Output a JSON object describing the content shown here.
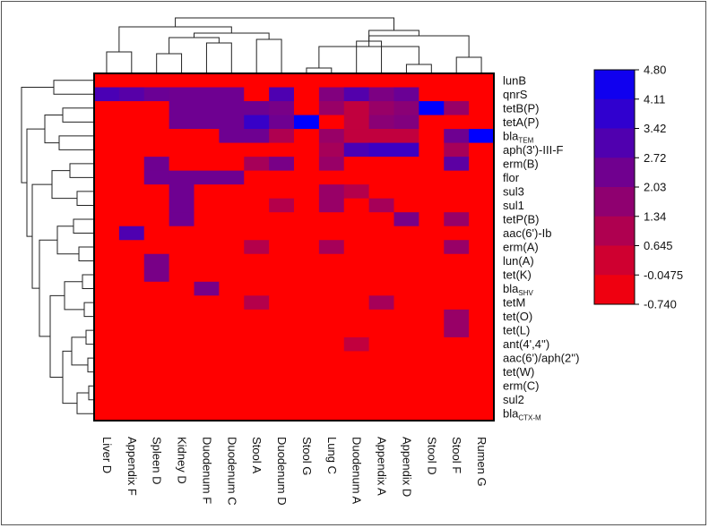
{
  "chart_data": {
    "type": "heatmap",
    "rows": [
      "lunB",
      "qnrS",
      "tetB(P)",
      "tetA(P)",
      "bla_TEM",
      "aph(3')-III-F",
      "erm(B)",
      "flor",
      "sul3",
      "sul1",
      "tetP(B)",
      "aac(6')-Ib",
      "erm(A)",
      "lun(A)",
      "tet(K)",
      "bla_SHV",
      "tetM",
      "tet(O)",
      "tet(L)",
      "ant(4',4'')",
      "aac(6')/aph(2'')",
      "tet(W)",
      "erm(C)",
      "sul2",
      "bla_CTX-M"
    ],
    "row_labels": [
      {
        "main": "lunB",
        "sub": ""
      },
      {
        "main": "qnrS",
        "sub": ""
      },
      {
        "main": "tetB(P)",
        "sub": ""
      },
      {
        "main": "tetA(P)",
        "sub": ""
      },
      {
        "main": "bla",
        "sub": "TEM"
      },
      {
        "main": "aph(3')-III-F",
        "sub": ""
      },
      {
        "main": "erm(B)",
        "sub": ""
      },
      {
        "main": "flor",
        "sub": ""
      },
      {
        "main": "sul3",
        "sub": ""
      },
      {
        "main": "sul1",
        "sub": ""
      },
      {
        "main": "tetP(B)",
        "sub": ""
      },
      {
        "main": "aac(6')-Ib",
        "sub": ""
      },
      {
        "main": "erm(A)",
        "sub": ""
      },
      {
        "main": "lun(A)",
        "sub": ""
      },
      {
        "main": "tet(K)",
        "sub": ""
      },
      {
        "main": "bla",
        "sub": "SHV"
      },
      {
        "main": "tetM",
        "sub": ""
      },
      {
        "main": "tet(O)",
        "sub": ""
      },
      {
        "main": "tet(L)",
        "sub": ""
      },
      {
        "main": "ant(4',4'')",
        "sub": ""
      },
      {
        "main": "aac(6')/aph(2'')",
        "sub": ""
      },
      {
        "main": "tet(W)",
        "sub": ""
      },
      {
        "main": "erm(C)",
        "sub": ""
      },
      {
        "main": "sul2",
        "sub": ""
      },
      {
        "main": "bla",
        "sub": "CTX-M"
      }
    ],
    "columns": [
      "Liver D",
      "Appendix F",
      "Spleen D",
      "Kidney D",
      "Duodenum F",
      "Duodenum C",
      "Stool A",
      "Duodenum D",
      "Stool G",
      "Lung C",
      "Duodenum A",
      "Appendix A",
      "Appendix D",
      "Stool D",
      "Stool F",
      "Rumen G"
    ],
    "values": [
      [
        -0.74,
        -0.74,
        -0.74,
        -0.74,
        -0.74,
        -0.74,
        -0.74,
        -0.74,
        -0.74,
        -0.74,
        -0.74,
        -0.74,
        -0.74,
        -0.74,
        -0.74,
        -0.74
      ],
      [
        3.2,
        2.9,
        2.5,
        2.4,
        2.4,
        2.4,
        -0.74,
        3.1,
        -0.74,
        2.0,
        3.0,
        2.1,
        2.5,
        -0.74,
        -0.74,
        -0.74
      ],
      [
        -0.74,
        -0.74,
        -0.74,
        2.4,
        2.4,
        2.4,
        2.4,
        2.2,
        -0.74,
        1.5,
        0.6,
        1.5,
        1.8,
        4.8,
        1.5,
        -0.74
      ],
      [
        -0.74,
        -0.74,
        -0.74,
        2.4,
        2.4,
        2.4,
        3.6,
        2.4,
        4.8,
        -0.74,
        0.6,
        1.8,
        2.0,
        -0.74,
        -0.74,
        -0.74
      ],
      [
        -0.74,
        -0.74,
        -0.74,
        -0.74,
        -0.74,
        2.4,
        2.4,
        1.0,
        -0.74,
        1.5,
        0.6,
        0.6,
        0.6,
        -0.74,
        2.4,
        4.8
      ],
      [
        -0.74,
        -0.74,
        -0.74,
        -0.74,
        -0.74,
        -0.74,
        -0.74,
        -0.74,
        -0.74,
        1.2,
        3.2,
        3.5,
        3.5,
        -0.74,
        1.2,
        -0.74
      ],
      [
        -0.74,
        -0.74,
        2.4,
        -0.74,
        -0.74,
        -0.74,
        1.2,
        2.2,
        -0.74,
        1.5,
        -0.74,
        -0.74,
        -0.74,
        -0.74,
        2.8,
        -0.74
      ],
      [
        -0.74,
        -0.74,
        2.4,
        2.4,
        2.4,
        2.4,
        -0.74,
        -0.74,
        -0.74,
        -0.74,
        -0.74,
        -0.74,
        -0.74,
        -0.74,
        -0.74,
        -0.74
      ],
      [
        -0.74,
        -0.74,
        -0.74,
        2.4,
        -0.74,
        -0.74,
        -0.74,
        -0.74,
        -0.74,
        1.5,
        0.9,
        -0.74,
        -0.74,
        -0.74,
        -0.74,
        -0.74
      ],
      [
        -0.74,
        -0.74,
        -0.74,
        2.4,
        -0.74,
        -0.74,
        -0.74,
        0.9,
        -0.74,
        1.5,
        -0.74,
        1.2,
        -0.74,
        -0.74,
        -0.74,
        -0.74
      ],
      [
        -0.74,
        -0.74,
        -0.74,
        2.4,
        -0.74,
        -0.74,
        -0.74,
        -0.74,
        -0.74,
        -0.74,
        -0.74,
        -0.74,
        2.2,
        -0.74,
        1.5,
        -0.74
      ],
      [
        -0.74,
        3.1,
        -0.74,
        -0.74,
        -0.74,
        -0.74,
        -0.74,
        -0.74,
        -0.74,
        -0.74,
        -0.74,
        -0.74,
        -0.74,
        -0.74,
        -0.74,
        -0.74
      ],
      [
        -0.74,
        -0.74,
        -0.74,
        -0.74,
        -0.74,
        -0.74,
        0.9,
        -0.74,
        -0.74,
        1.2,
        -0.74,
        -0.74,
        -0.74,
        -0.74,
        1.5,
        -0.74
      ],
      [
        -0.74,
        -0.74,
        2.2,
        -0.74,
        -0.74,
        -0.74,
        -0.74,
        -0.74,
        -0.74,
        -0.74,
        -0.74,
        -0.74,
        -0.74,
        -0.74,
        -0.74,
        -0.74
      ],
      [
        -0.74,
        -0.74,
        2.2,
        -0.74,
        -0.74,
        -0.74,
        -0.74,
        -0.74,
        -0.74,
        -0.74,
        -0.74,
        -0.74,
        -0.74,
        -0.74,
        -0.74,
        -0.74
      ],
      [
        -0.74,
        -0.74,
        -0.74,
        -0.74,
        2.2,
        -0.74,
        -0.74,
        -0.74,
        -0.74,
        -0.74,
        -0.74,
        -0.74,
        -0.74,
        -0.74,
        -0.74,
        -0.74
      ],
      [
        -0.74,
        -0.74,
        -0.74,
        -0.74,
        -0.74,
        -0.74,
        0.9,
        -0.74,
        -0.74,
        -0.74,
        -0.74,
        1.2,
        -0.74,
        -0.74,
        -0.74,
        -0.74
      ],
      [
        -0.74,
        -0.74,
        -0.74,
        -0.74,
        -0.74,
        -0.74,
        -0.74,
        -0.74,
        -0.74,
        -0.74,
        -0.74,
        -0.74,
        -0.74,
        -0.74,
        1.5,
        -0.74
      ],
      [
        -0.74,
        -0.74,
        -0.74,
        -0.74,
        -0.74,
        -0.74,
        -0.74,
        -0.74,
        -0.74,
        -0.74,
        -0.74,
        -0.74,
        -0.74,
        -0.74,
        1.5,
        -0.74
      ],
      [
        -0.74,
        -0.74,
        -0.74,
        -0.74,
        -0.74,
        -0.74,
        -0.74,
        -0.74,
        -0.74,
        -0.74,
        0.6,
        -0.74,
        -0.74,
        -0.74,
        -0.74,
        -0.74
      ],
      [
        -0.74,
        -0.74,
        -0.74,
        -0.74,
        -0.74,
        -0.74,
        -0.74,
        -0.74,
        -0.74,
        -0.74,
        -0.74,
        -0.74,
        -0.74,
        -0.74,
        -0.74,
        -0.74
      ],
      [
        -0.74,
        -0.74,
        -0.74,
        -0.74,
        -0.74,
        -0.74,
        -0.74,
        -0.74,
        -0.74,
        -0.74,
        -0.74,
        -0.74,
        -0.74,
        -0.74,
        -0.74,
        -0.74
      ],
      [
        -0.74,
        -0.74,
        -0.74,
        -0.74,
        -0.74,
        -0.74,
        -0.74,
        -0.74,
        -0.74,
        -0.74,
        -0.74,
        -0.74,
        -0.74,
        -0.74,
        -0.74,
        -0.74
      ],
      [
        -0.74,
        -0.74,
        -0.74,
        -0.74,
        -0.74,
        -0.74,
        -0.74,
        -0.74,
        -0.74,
        -0.74,
        -0.74,
        -0.74,
        -0.74,
        -0.74,
        -0.74,
        -0.74
      ],
      [
        -0.74,
        -0.74,
        -0.74,
        -0.74,
        -0.74,
        -0.74,
        -0.74,
        -0.74,
        -0.74,
        -0.74,
        -0.74,
        -0.74,
        -0.74,
        -0.74,
        -0.74,
        -0.74
      ]
    ],
    "color_scale": {
      "ticks": [
        "4.80",
        "4.11",
        "3.42",
        "2.72",
        "2.03",
        "1.34",
        "0.645",
        "-0.0475",
        "-0.740"
      ],
      "min": -0.74,
      "max": 4.8,
      "low_color": "#ff0000",
      "high_color": "#0000ff"
    },
    "dendrograms": {
      "rows": true,
      "columns": true
    },
    "legend_position": "right",
    "grid": false
  }
}
